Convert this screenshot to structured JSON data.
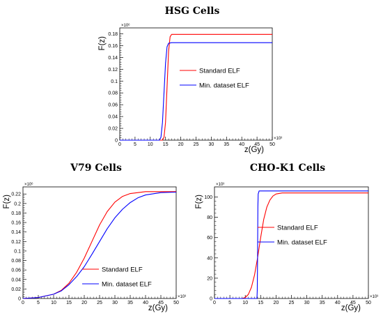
{
  "chart_data": [
    {
      "type": "line",
      "title": "HSG Cells",
      "xlabel": "z(Gy)",
      "ylabel": "F(z)",
      "x_multiplier": "×10³",
      "y_multiplier": "×10⁶",
      "xlim": [
        0,
        50
      ],
      "ylim": [
        0,
        0.19
      ],
      "xticks": [
        0,
        5,
        10,
        15,
        20,
        25,
        30,
        35,
        40,
        45,
        50
      ],
      "yticks": [
        0,
        0.02,
        0.04,
        0.06,
        0.08,
        0.1,
        0.12,
        0.14,
        0.16,
        0.18
      ],
      "ytick_labels": [
        "0",
        "0.02",
        "0.04",
        "0.06",
        "0.08",
        "0.1",
        "0.12",
        "0.14",
        "0.16",
        "0.18"
      ],
      "legend_position": "center-right",
      "series": [
        {
          "name": "Standard ELF",
          "color": "#ff0000",
          "x": [
            0,
            14,
            14.5,
            15,
            15.5,
            16,
            16.5,
            17,
            18,
            50
          ],
          "y": [
            0,
            0,
            0.005,
            0.03,
            0.09,
            0.15,
            0.175,
            0.179,
            0.179,
            0.179
          ]
        },
        {
          "name": "Min. dataset ELF",
          "color": "#0000ff",
          "x": [
            0,
            13,
            13.5,
            14,
            14.5,
            15,
            15.5,
            16,
            17,
            50
          ],
          "y": [
            0,
            0,
            0.005,
            0.03,
            0.08,
            0.13,
            0.158,
            0.164,
            0.165,
            0.165
          ]
        }
      ]
    },
    {
      "type": "line",
      "title": "V79 Cells",
      "xlabel": "z(Gy)",
      "ylabel": "F(z)",
      "x_multiplier": "×10³",
      "y_multiplier": "×10⁶",
      "xlim": [
        0,
        50
      ],
      "ylim": [
        0,
        0.235
      ],
      "xticks": [
        0,
        5,
        10,
        15,
        20,
        25,
        30,
        35,
        40,
        45,
        50
      ],
      "yticks": [
        0,
        0.02,
        0.04,
        0.06,
        0.08,
        0.1,
        0.12,
        0.14,
        0.16,
        0.18,
        0.2,
        0.22
      ],
      "ytick_labels": [
        "0",
        "0.02",
        "0.04",
        "0.06",
        "0.08",
        "0.1",
        "0.12",
        "0.14",
        "0.16",
        "0.18",
        "0.2",
        "0.22"
      ],
      "legend_position": "bottom-right",
      "series": [
        {
          "name": "Standard ELF",
          "color": "#ff0000",
          "x": [
            0,
            5,
            10,
            12.5,
            15,
            17.5,
            20,
            22.5,
            25,
            27.5,
            30,
            32.5,
            35,
            40,
            45,
            50
          ],
          "y": [
            0,
            0.002,
            0.009,
            0.017,
            0.032,
            0.055,
            0.085,
            0.12,
            0.155,
            0.183,
            0.203,
            0.215,
            0.221,
            0.225,
            0.225,
            0.225
          ]
        },
        {
          "name": "Min. dataset ELF",
          "color": "#0000ff",
          "x": [
            0,
            5,
            10,
            12.5,
            15,
            17.5,
            20,
            22.5,
            25,
            27.5,
            30,
            32.5,
            35,
            37.5,
            40,
            45,
            50
          ],
          "y": [
            0,
            0.002,
            0.009,
            0.016,
            0.029,
            0.046,
            0.067,
            0.093,
            0.12,
            0.147,
            0.17,
            0.188,
            0.202,
            0.212,
            0.218,
            0.223,
            0.224
          ]
        }
      ]
    },
    {
      "type": "line",
      "title": "CHO-K1 Cells",
      "xlabel": "z(Gy)",
      "ylabel": "F(z)",
      "x_multiplier": "×10³",
      "y_multiplier": "×10³",
      "xlim": [
        0,
        50
      ],
      "ylim": [
        0,
        110
      ],
      "xticks": [
        0,
        5,
        10,
        15,
        20,
        25,
        30,
        35,
        40,
        45,
        50
      ],
      "yticks": [
        0,
        20,
        40,
        60,
        80,
        100
      ],
      "ytick_labels": [
        "0",
        "20",
        "40",
        "60",
        "80",
        "100"
      ],
      "legend_position": "center-right",
      "series": [
        {
          "name": "Standard ELF",
          "color": "#ff0000",
          "x": [
            0,
            9,
            10,
            11,
            12,
            13,
            14,
            15,
            16,
            17,
            18,
            19,
            20,
            22,
            50
          ],
          "y": [
            0,
            0,
            1,
            4,
            11,
            23,
            40,
            60,
            78,
            90,
            97,
            101,
            103,
            104,
            104
          ]
        },
        {
          "name": "Min. dataset ELF",
          "color": "#0000ff",
          "x": [
            0,
            13.8,
            13.9,
            14.0,
            14.1,
            14.2,
            14.5,
            15,
            50
          ],
          "y": [
            0,
            0,
            8,
            40,
            90,
            103,
            106,
            106,
            106
          ]
        }
      ]
    }
  ]
}
